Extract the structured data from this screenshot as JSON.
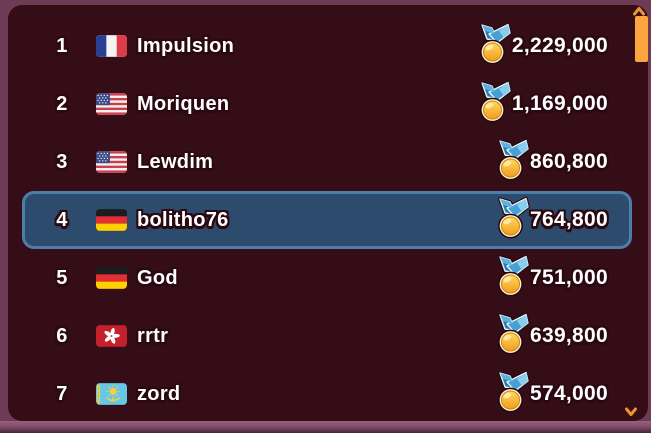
{
  "leaderboard": {
    "rows": [
      {
        "rank": "1",
        "flag": "france",
        "name": "Impulsion",
        "score": "2,229,000",
        "highlighted": false
      },
      {
        "rank": "2",
        "flag": "usa",
        "name": "Moriquen",
        "score": "1,169,000",
        "highlighted": false
      },
      {
        "rank": "3",
        "flag": "usa",
        "name": "Lewdim",
        "score": "860,800",
        "highlighted": false
      },
      {
        "rank": "4",
        "flag": "germany",
        "name": "bolitho76",
        "score": "764,800",
        "highlighted": true
      },
      {
        "rank": "5",
        "flag": "germany",
        "name": "God",
        "score": "751,000",
        "highlighted": false
      },
      {
        "rank": "6",
        "flag": "hong-kong",
        "name": "rrtr",
        "score": "639,800",
        "highlighted": false
      },
      {
        "rank": "7",
        "flag": "kazakhstan",
        "name": "zord",
        "score": "574,000",
        "highlighted": false
      }
    ]
  },
  "icons": {
    "medal": "gold-medal-with-blue-ribbon",
    "scroll_up": "chevron-up",
    "scroll_down": "chevron-down"
  },
  "colors": {
    "background": "#6d3b53",
    "panel": "#350d17",
    "ink": "#2a0912",
    "text": "#ffffff",
    "highlight_fill": "#2d4c6d",
    "highlight_border": "#4d7ea8",
    "scrollbar_thumb": "#fca43e",
    "scroll_arrow": "#ef932e"
  }
}
